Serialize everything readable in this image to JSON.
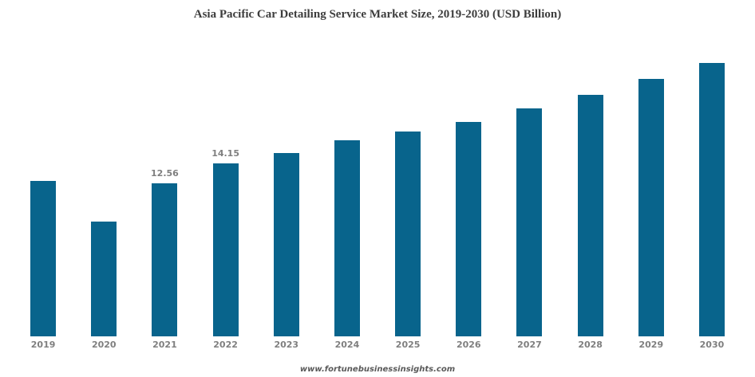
{
  "title": "Asia Pacific Car Detailing Service Market Size, 2019-2030 (USD Billion)",
  "footer": {
    "watermark": "www.fortunebusinessinsights.com"
  },
  "colors": {
    "bar": "#08648c",
    "title": "#3d3d3d",
    "tick": "#7f7f7f",
    "data_label": "#7f7f7f",
    "watermark": "#595959",
    "background": "#ffffff"
  },
  "chart_data": {
    "type": "bar",
    "title": "Asia Pacific Car Detailing Service Market Size, 2019-2030 (USD Billion)",
    "categories": [
      "2019",
      "2020",
      "2021",
      "2022",
      "2023",
      "2024",
      "2025",
      "2026",
      "2027",
      "2028",
      "2029",
      "2030"
    ],
    "values": [
      12.76,
      9.38,
      12.56,
      14.15,
      15.02,
      16.04,
      16.78,
      17.59,
      18.7,
      19.81,
      21.12,
      22.4
    ],
    "data_labels": {
      "2021": "12.56",
      "2022": "14.15"
    },
    "xlabel": "",
    "ylabel": "",
    "ylim": [
      0,
      24
    ],
    "grid": false,
    "legend": "none",
    "axes_hidden": true,
    "bar_color": "#08648c"
  }
}
